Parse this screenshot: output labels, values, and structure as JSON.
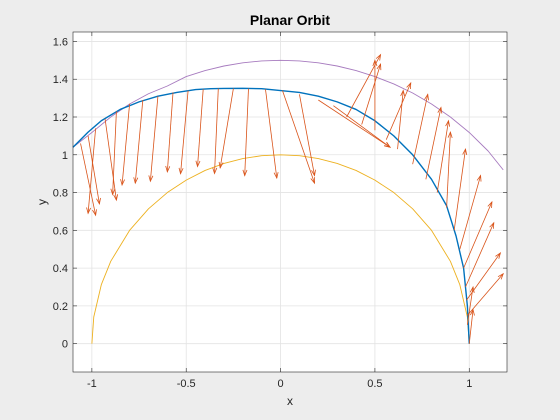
{
  "chart_data": {
    "type": "line",
    "title": "Planar Orbit",
    "xlabel": "x",
    "ylabel": "y",
    "xlim": [
      -1.1,
      1.2
    ],
    "ylim": [
      -0.15,
      1.65
    ],
    "grid": true,
    "x_ticks": [
      -1,
      -0.5,
      0,
      0.5,
      1
    ],
    "x_tick_labels": [
      "-1",
      "-0.5",
      "0",
      "0.5",
      "1"
    ],
    "y_ticks": [
      0,
      0.2,
      0.4,
      0.6,
      0.8,
      1,
      1.2,
      1.4,
      1.6
    ],
    "y_tick_labels": [
      "0",
      "0.2",
      "0.4",
      "0.6",
      "0.8",
      "1",
      "1.2",
      "1.4",
      "1.6"
    ],
    "colors": {
      "orbit": "#0072BD",
      "outer_circle": "#A77BBF",
      "inner_circle": "#EDB120",
      "arrows": "#D95319"
    },
    "series": [
      {
        "role": "orbit",
        "x": [
          1.0,
          0.99,
          0.97,
          0.93,
          0.88,
          0.8,
          0.7,
          0.6,
          0.5,
          0.4,
          0.3,
          0.2,
          0.1,
          0.0,
          -0.1,
          -0.2,
          -0.3,
          -0.37,
          -0.45,
          -0.55,
          -0.65,
          -0.75,
          -0.85,
          -0.95,
          -1.02,
          -1.1
        ],
        "y": [
          0.0,
          0.2,
          0.4,
          0.57,
          0.73,
          0.87,
          1.0,
          1.1,
          1.18,
          1.24,
          1.28,
          1.31,
          1.33,
          1.34,
          1.35,
          1.352,
          1.351,
          1.35,
          1.345,
          1.33,
          1.31,
          1.28,
          1.24,
          1.18,
          1.12,
          1.04
        ]
      },
      {
        "role": "outer_circle",
        "x": [
          -1.1,
          -1.0,
          -0.9,
          -0.8,
          -0.7,
          -0.6,
          -0.5,
          -0.4,
          -0.3,
          -0.2,
          -0.1,
          0.0,
          0.1,
          0.2,
          0.3,
          0.4,
          0.5,
          0.6,
          0.7,
          0.8,
          0.9,
          1.0,
          1.1,
          1.18
        ],
        "y": [
          1.04,
          1.118,
          1.2,
          1.269,
          1.323,
          1.364,
          1.414,
          1.446,
          1.47,
          1.487,
          1.497,
          1.5,
          1.497,
          1.487,
          1.47,
          1.446,
          1.414,
          1.375,
          1.327,
          1.269,
          1.2,
          1.118,
          1.02,
          0.92
        ]
      },
      {
        "role": "inner_circle",
        "x": [
          -1.0,
          -0.99,
          -0.95,
          -0.9,
          -0.8,
          -0.7,
          -0.6,
          -0.5,
          -0.4,
          -0.3,
          -0.2,
          -0.1,
          0.0,
          0.1,
          0.2,
          0.3,
          0.4,
          0.5,
          0.6,
          0.7,
          0.8,
          0.9,
          0.95,
          0.99,
          1.0
        ],
        "y": [
          0.0,
          0.141,
          0.312,
          0.436,
          0.6,
          0.714,
          0.8,
          0.866,
          0.917,
          0.954,
          0.98,
          0.995,
          1.0,
          0.995,
          0.98,
          0.954,
          0.917,
          0.866,
          0.8,
          0.714,
          0.6,
          0.436,
          0.312,
          0.141,
          0.0
        ]
      }
    ],
    "arrows": [
      {
        "x": 1.0,
        "y": 0.0,
        "u": 0.02,
        "v": 0.18
      },
      {
        "x": 0.99,
        "y": 0.1,
        "u": 0.03,
        "v": 0.2
      },
      {
        "x": 0.99,
        "y": 0.15,
        "u": 0.19,
        "v": 0.22
      },
      {
        "x": 0.985,
        "y": 0.23,
        "u": 0.18,
        "v": 0.25
      },
      {
        "x": 0.98,
        "y": 0.3,
        "u": 0.15,
        "v": 0.34
      },
      {
        "x": 0.97,
        "y": 0.4,
        "u": 0.15,
        "v": 0.35
      },
      {
        "x": 0.95,
        "y": 0.5,
        "u": 0.11,
        "v": 0.39
      },
      {
        "x": 0.92,
        "y": 0.6,
        "u": 0.06,
        "v": 0.43
      },
      {
        "x": 0.88,
        "y": 0.72,
        "u": 0.02,
        "v": 0.4
      },
      {
        "x": 0.83,
        "y": 0.8,
        "u": 0.06,
        "v": 0.38
      },
      {
        "x": 0.77,
        "y": 0.87,
        "u": 0.08,
        "v": 0.38
      },
      {
        "x": 0.7,
        "y": 0.95,
        "u": 0.08,
        "v": 0.37
      },
      {
        "x": 0.62,
        "y": 1.03,
        "u": 0.03,
        "v": 0.31
      },
      {
        "x": 0.56,
        "y": 1.08,
        "u": 0.13,
        "v": 0.3
      },
      {
        "x": 0.5,
        "y": 1.13,
        "u": 0.0,
        "v": 0.37
      },
      {
        "x": 0.43,
        "y": 1.16,
        "u": 0.1,
        "v": 0.32
      },
      {
        "x": 0.35,
        "y": 1.2,
        "u": 0.18,
        "v": 0.33
      },
      {
        "x": 0.28,
        "y": 1.26,
        "u": 0.3,
        "v": -0.22
      },
      {
        "x": 0.2,
        "y": 1.29,
        "u": 0.38,
        "v": -0.25
      },
      {
        "x": 0.1,
        "y": 1.32,
        "u": 0.08,
        "v": -0.43
      },
      {
        "x": 0.01,
        "y": 1.34,
        "u": 0.17,
        "v": -0.49
      },
      {
        "x": -0.08,
        "y": 1.347,
        "u": 0.06,
        "v": -0.47
      },
      {
        "x": -0.17,
        "y": 1.35,
        "u": -0.02,
        "v": -0.46
      },
      {
        "x": -0.25,
        "y": 1.351,
        "u": -0.07,
        "v": -0.42
      },
      {
        "x": -0.33,
        "y": 1.351,
        "u": -0.02,
        "v": -0.45
      },
      {
        "x": -0.41,
        "y": 1.348,
        "u": -0.03,
        "v": -0.41
      },
      {
        "x": -0.49,
        "y": 1.34,
        "u": -0.04,
        "v": -0.44
      },
      {
        "x": -0.57,
        "y": 1.33,
        "u": -0.03,
        "v": -0.42
      },
      {
        "x": -0.65,
        "y": 1.31,
        "u": -0.04,
        "v": -0.45
      },
      {
        "x": -0.73,
        "y": 1.29,
        "u": -0.04,
        "v": -0.44
      },
      {
        "x": -0.8,
        "y": 1.27,
        "u": -0.04,
        "v": -0.43
      },
      {
        "x": -0.87,
        "y": 1.23,
        "u": -0.02,
        "v": -0.44
      },
      {
        "x": -0.93,
        "y": 1.19,
        "u": 0.06,
        "v": -0.43
      },
      {
        "x": -0.98,
        "y": 1.14,
        "u": -0.04,
        "v": -0.45
      },
      {
        "x": -1.02,
        "y": 1.1,
        "u": 0.06,
        "v": -0.36
      },
      {
        "x": -1.06,
        "y": 1.06,
        "u": 0.08,
        "v": -0.38
      }
    ]
  }
}
